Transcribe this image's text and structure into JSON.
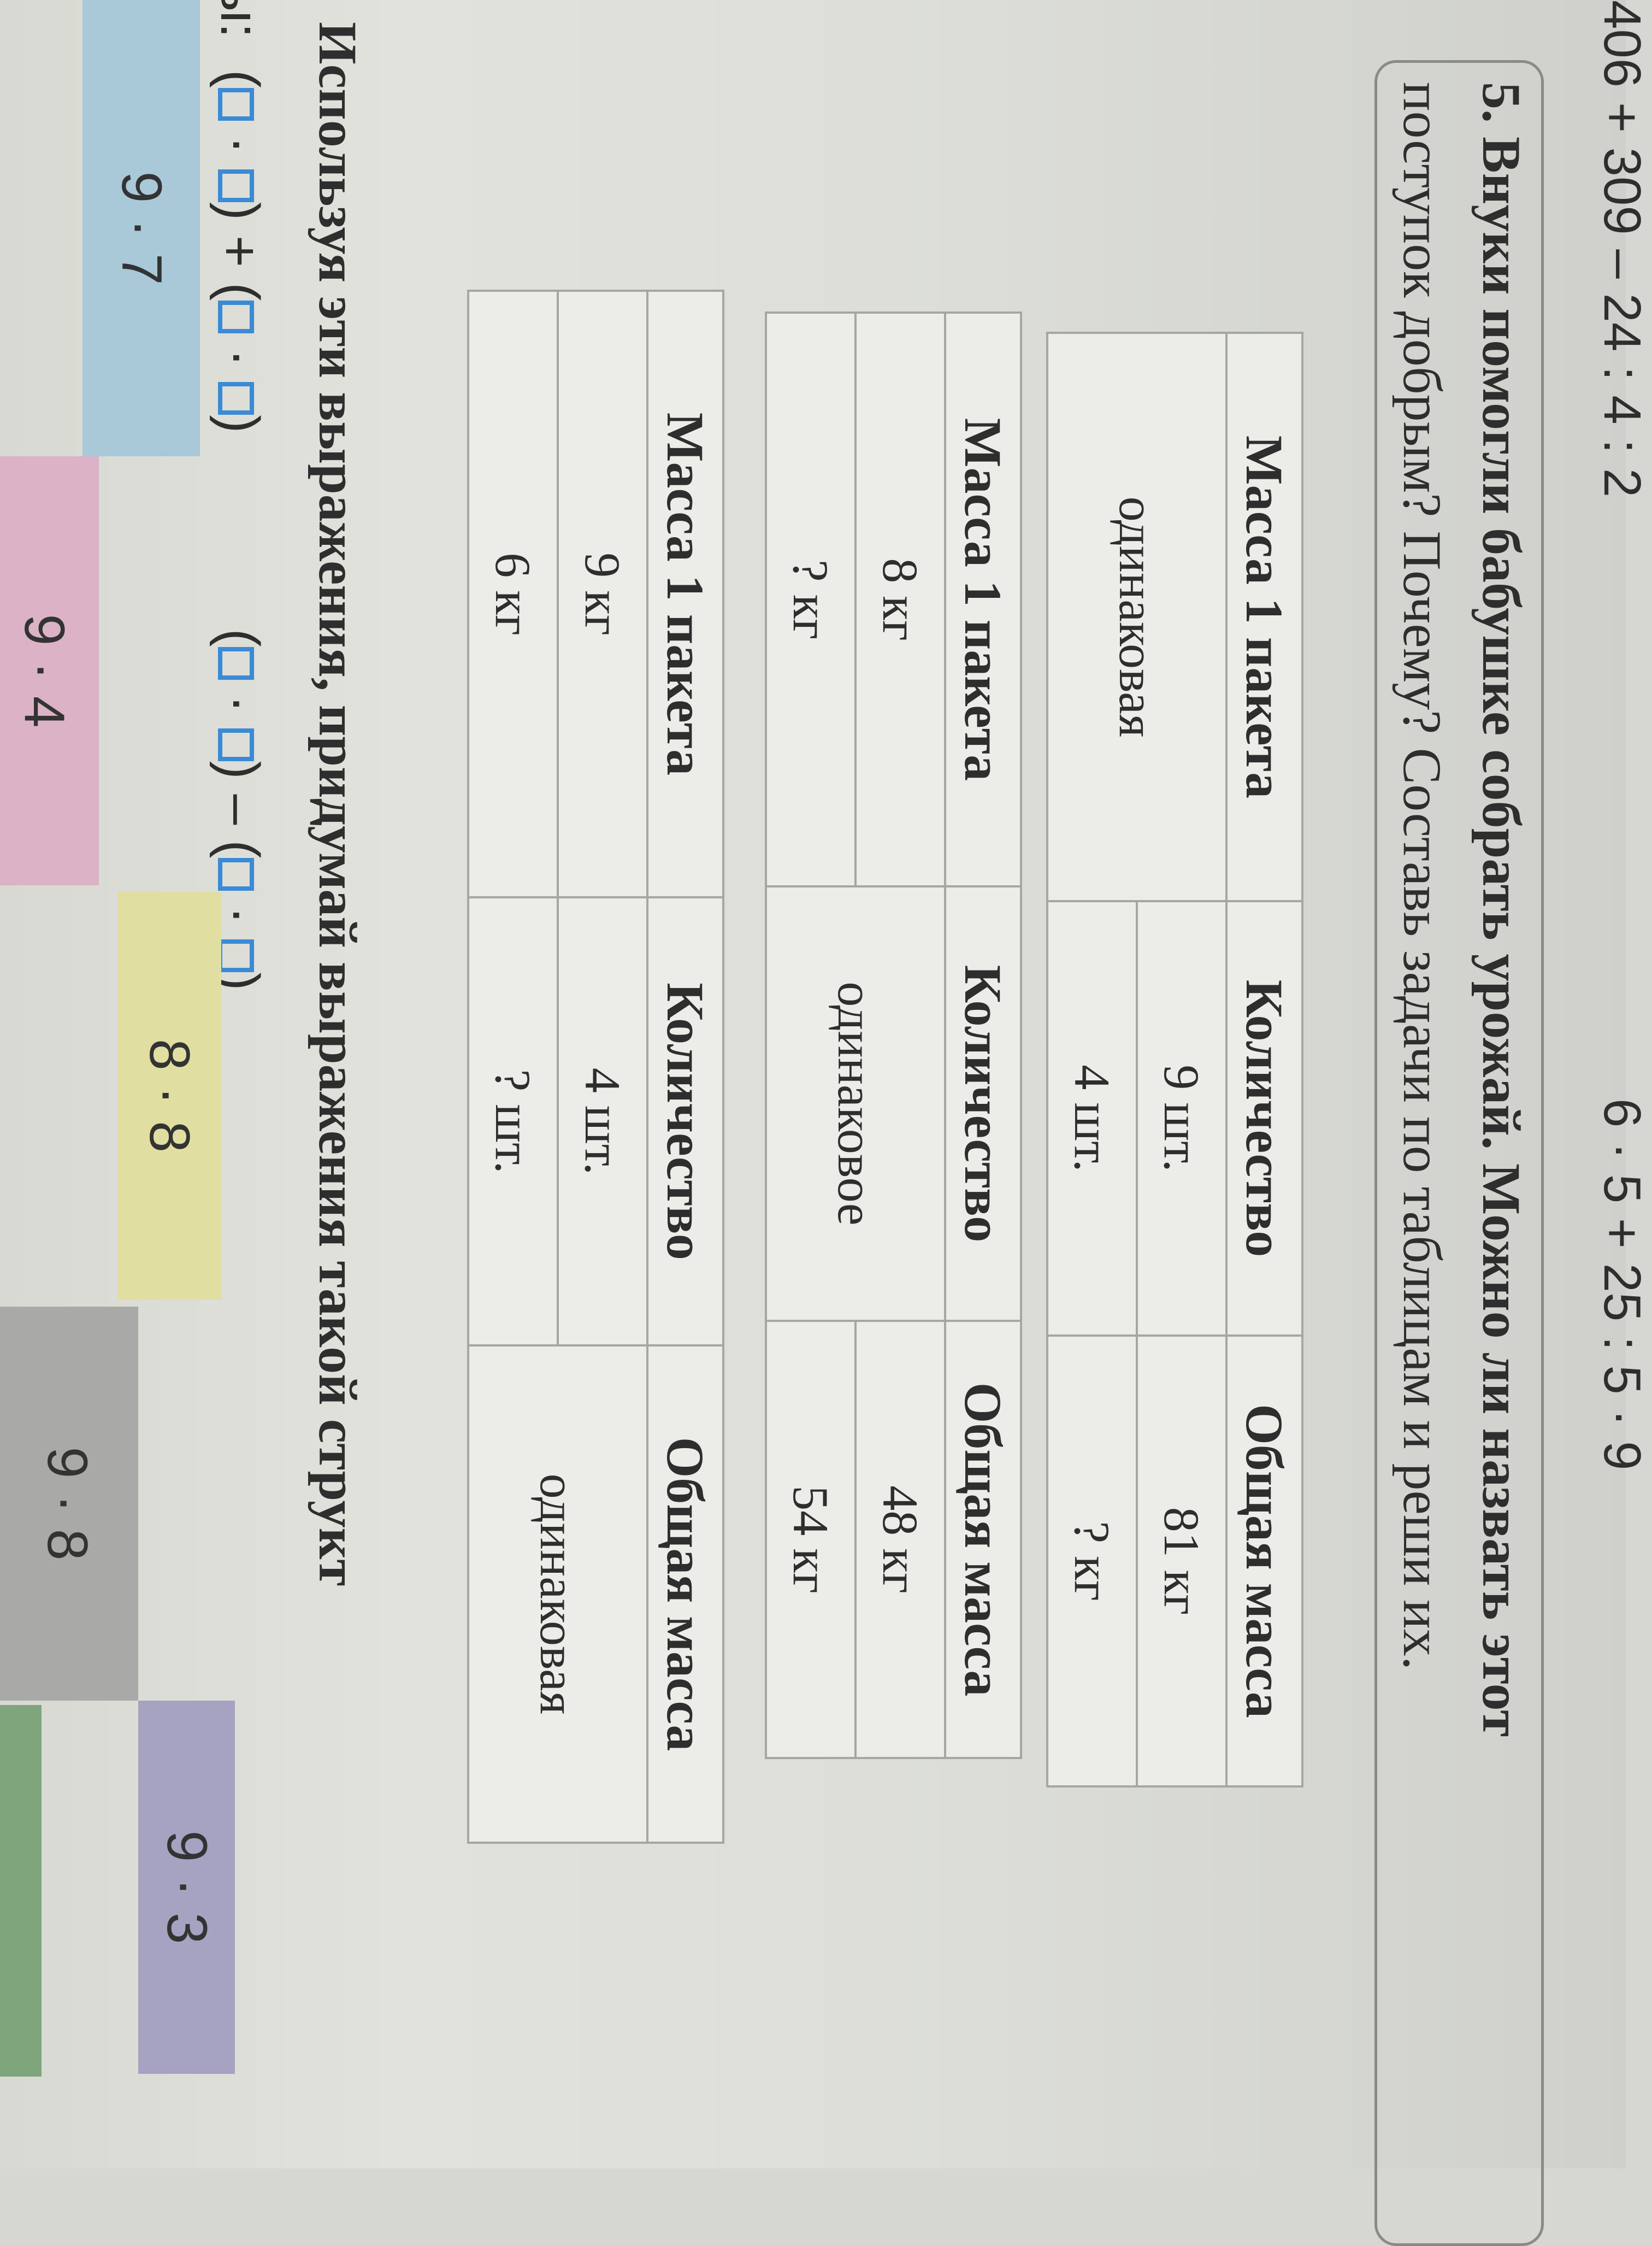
{
  "top_expressions": [
    "406 + 309 – 24 : 4 : 2",
    "6 · 5 + 25 : 5 · 9"
  ],
  "task": {
    "line1": "5. Внуки помогли бабушке собрать урожай. Можно ли назвать этот",
    "line2": "поступок добрым? Почему? Составь задачи по таблицам и реши их."
  },
  "headers": [
    "Масса 1 пакета",
    "Количество",
    "Общая масса"
  ],
  "table1": {
    "mass": "одинаковая",
    "count": [
      "9 шт.",
      "4 шт."
    ],
    "total": [
      "81 кг",
      "? кг"
    ]
  },
  "table2": {
    "mass": [
      "8 кг",
      "? кг"
    ],
    "count": "одинаковое",
    "total": [
      "48 кг",
      "54 кг"
    ]
  },
  "table3": {
    "mass": [
      "9 кг",
      "6 кг"
    ],
    "count": [
      "4 шт.",
      "? шт."
    ],
    "total": "одинаковая"
  },
  "next_task": {
    "line1": "Используя эти выражения, придумай выражения такой структ",
    "prefix": "ы:",
    "expr1": [
      "(",
      "·",
      ")",
      "+",
      "(",
      "·",
      ")"
    ],
    "expr2": [
      "(",
      "·",
      ")",
      "–",
      "(",
      "·",
      ")"
    ]
  },
  "cards": [
    {
      "label": "9 · 7",
      "color": "#a9c9d8"
    },
    {
      "label": "9 · 4",
      "color": "#dcb3c6"
    },
    {
      "label": "8 · 8",
      "color": "#e0dea0"
    },
    {
      "label": "9 · 8",
      "color": "#a9a9a7"
    },
    {
      "label": "9 · 3",
      "color": "#a6a2c2"
    },
    {
      "label": "",
      "color": "#7ea57c"
    }
  ]
}
